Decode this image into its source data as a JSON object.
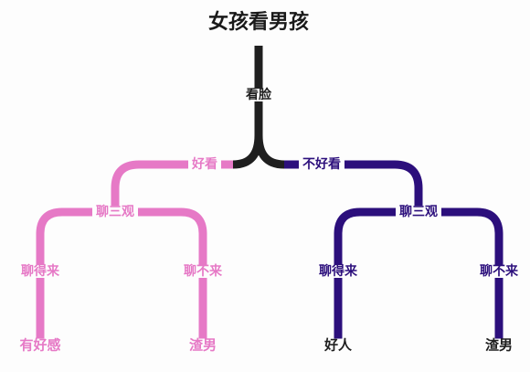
{
  "title": "女孩看男孩",
  "root_step": "看脸",
  "left": {
    "label": "好看",
    "step": "聊三观",
    "options": [
      "聊得来",
      "聊不来"
    ],
    "results": [
      "有好感",
      "渣男"
    ]
  },
  "right": {
    "label": "不好看",
    "step": "聊三观",
    "options": [
      "聊得来",
      "聊不来"
    ],
    "results": [
      "好人",
      "渣男"
    ]
  },
  "colors": {
    "dark": "#1f1f1f",
    "pink": "#e679c6",
    "purple": "#2c0f7c"
  }
}
